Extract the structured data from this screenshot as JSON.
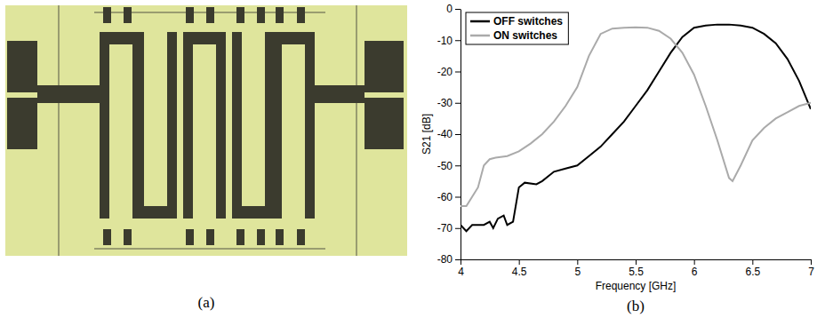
{
  "chart_data": {
    "type": "line",
    "xlabel": "Frequency [GHz]",
    "ylabel": "S21 [dB]",
    "xlim": [
      4,
      7
    ],
    "xticks": [
      4,
      4.5,
      5,
      5.5,
      6,
      6.5,
      7
    ],
    "ylim": [
      -80,
      0
    ],
    "yticks": [
      -80,
      -70,
      -60,
      -50,
      -40,
      -30,
      -20,
      -10,
      0
    ],
    "grid": false,
    "legend": "upper left",
    "series": [
      {
        "name": "OFF switches",
        "color": "#000000",
        "x": [
          4,
          4.05,
          4.1,
          4.2,
          4.25,
          4.28,
          4.32,
          4.37,
          4.4,
          4.45,
          4.5,
          4.55,
          4.65,
          4.7,
          4.8,
          4.9,
          5.0,
          5.1,
          5.2,
          5.3,
          5.4,
          5.5,
          5.6,
          5.7,
          5.8,
          5.9,
          6.0,
          6.1,
          6.2,
          6.3,
          6.4,
          6.5,
          6.6,
          6.7,
          6.8,
          6.9,
          7.0
        ],
        "values": [
          -69,
          -71,
          -69,
          -69,
          -68,
          -70,
          -67,
          -66,
          -69,
          -68,
          -57,
          -55.5,
          -56,
          -55,
          -52,
          -51,
          -50,
          -47,
          -44,
          -40,
          -36,
          -31,
          -26,
          -20,
          -14,
          -9,
          -6,
          -5.3,
          -5,
          -5,
          -5.3,
          -6,
          -8,
          -11,
          -16,
          -23,
          -32
        ]
      },
      {
        "name": "ON switches",
        "color": "#aaaaaa",
        "x": [
          4,
          4.05,
          4.1,
          4.15,
          4.2,
          4.25,
          4.3,
          4.4,
          4.5,
          4.6,
          4.7,
          4.8,
          4.9,
          5.0,
          5.1,
          5.2,
          5.3,
          5.4,
          5.5,
          5.6,
          5.7,
          5.8,
          5.9,
          6.0,
          6.1,
          6.2,
          6.3,
          6.33,
          6.4,
          6.5,
          6.6,
          6.7,
          6.8,
          6.9,
          7.0
        ],
        "values": [
          -63,
          -63,
          -60,
          -57,
          -50,
          -48,
          -47.5,
          -47,
          -45.5,
          -43,
          -40,
          -36,
          -31,
          -25,
          -15,
          -8,
          -6.3,
          -6,
          -5.9,
          -6,
          -7,
          -9.5,
          -14,
          -21,
          -31,
          -42,
          -54,
          -55,
          -50,
          -42,
          -38,
          -35,
          -33,
          -31,
          -30
        ]
      }
    ]
  },
  "panel_labels": [
    "(a)",
    "(b)"
  ]
}
